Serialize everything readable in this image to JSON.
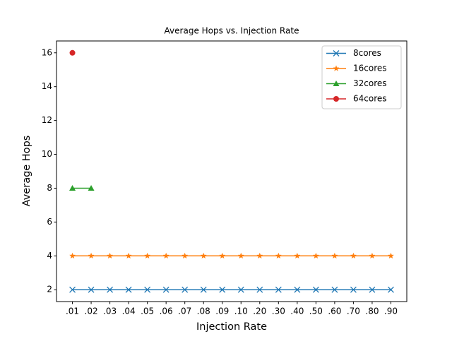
{
  "chart_data": {
    "type": "line",
    "title": "Average Hops vs. Injection Rate",
    "xlabel": "Injection Rate",
    "ylabel": "Average Hops",
    "categories": [
      ".01",
      ".02",
      ".03",
      ".04",
      ".05",
      ".06",
      ".07",
      ".08",
      ".09",
      ".10",
      ".20",
      ".30",
      ".40",
      ".50",
      ".60",
      ".70",
      ".80",
      ".90"
    ],
    "series": [
      {
        "name": "8cores",
        "color": "#1f77b4",
        "marker": "x",
        "values": [
          2,
          2,
          2,
          2,
          2,
          2,
          2,
          2,
          2,
          2,
          2,
          2,
          2,
          2,
          2,
          2,
          2,
          2
        ]
      },
      {
        "name": "16cores",
        "color": "#ff7f0e",
        "marker": "star",
        "values": [
          4,
          4,
          4,
          4,
          4,
          4,
          4,
          4,
          4,
          4,
          4,
          4,
          4,
          4,
          4,
          4,
          4,
          4
        ]
      },
      {
        "name": "32cores",
        "color": "#2ca02c",
        "marker": "triangle",
        "values": [
          8,
          8,
          null,
          null,
          null,
          null,
          null,
          null,
          null,
          null,
          null,
          null,
          null,
          null,
          null,
          null,
          null,
          null
        ]
      },
      {
        "name": "64cores",
        "color": "#d62728",
        "marker": "circle",
        "values": [
          16,
          null,
          null,
          null,
          null,
          null,
          null,
          null,
          null,
          null,
          null,
          null,
          null,
          null,
          null,
          null,
          null,
          null
        ]
      }
    ],
    "ylim": [
      1.3,
      16.7
    ],
    "yticks": [
      2,
      4,
      6,
      8,
      10,
      12,
      14,
      16
    ],
    "legend": "upper right"
  }
}
